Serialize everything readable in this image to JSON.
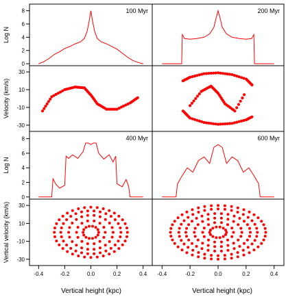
{
  "chart_data": {
    "type": "line",
    "layout": "4 rows x 2 columns, shared x axis",
    "x_label": "Vertical height (kpc)",
    "x_ticks": [
      "-0.4",
      "-0.2",
      "0.0",
      "0.2",
      "0.4"
    ],
    "xlim": [
      -0.47,
      0.47
    ],
    "series_color": "#ff0000",
    "row_labels": [
      "Log N",
      "Velocity (km/s)",
      "Log N",
      "Vertical velocity (km/s)"
    ],
    "logn_ticks": [
      "0",
      "2",
      "4",
      "6",
      "8"
    ],
    "logn_ylim": [
      -0.3,
      9.0
    ],
    "vel_ticks": [
      "-30",
      "-10",
      "10",
      "30"
    ],
    "vel_ylim": [
      -37,
      37
    ],
    "panels": [
      {
        "time_label": "100 Myr",
        "kind": "histogram",
        "x": [
          -0.4,
          -0.36,
          -0.32,
          -0.28,
          -0.24,
          -0.2,
          -0.16,
          -0.12,
          -0.08,
          -0.05,
          -0.03,
          -0.015,
          0.0,
          0.015,
          0.03,
          0.05,
          0.08,
          0.12,
          0.16,
          0.2,
          0.24,
          0.28,
          0.32,
          0.36,
          0.4
        ],
        "y": [
          0.0,
          0.3,
          0.8,
          1.4,
          1.8,
          2.3,
          2.6,
          3.0,
          3.3,
          3.8,
          4.8,
          6.2,
          8.0,
          6.2,
          4.8,
          3.8,
          3.3,
          3.0,
          2.6,
          2.2,
          1.6,
          1.0,
          0.5,
          0.2,
          0.0
        ]
      },
      {
        "time_label": "200 Myr",
        "kind": "histogram",
        "x": [
          -0.4,
          -0.26,
          -0.255,
          -0.24,
          -0.2,
          -0.15,
          -0.1,
          -0.06,
          -0.03,
          -0.015,
          0.0,
          0.015,
          0.03,
          0.06,
          0.1,
          0.15,
          0.2,
          0.24,
          0.255,
          0.26,
          0.4
        ],
        "y": [
          0.0,
          0.0,
          4.4,
          3.8,
          3.7,
          3.8,
          4.0,
          4.5,
          5.5,
          6.8,
          8.0,
          6.8,
          5.5,
          4.5,
          4.0,
          3.8,
          3.7,
          3.8,
          4.4,
          0.0,
          0.0
        ]
      },
      {
        "time_label": "",
        "kind": "phase",
        "groups": [
          {
            "x": [
              -0.37,
              -0.3,
              -0.2,
              -0.12,
              -0.05,
              0.0,
              0.05,
              0.12,
              0.2,
              0.3,
              0.37
            ],
            "y": [
              -14,
              2,
              10,
              13,
              12,
              4,
              -6,
              -12,
              -12,
              -5,
              2
            ]
          }
        ]
      },
      {
        "time_label": "",
        "kind": "phase",
        "groups": [
          {
            "x": [
              -0.25,
              -0.2,
              -0.1,
              0.0,
              0.1,
              0.2,
              0.25
            ],
            "y": [
              20,
              24,
              28,
              29,
              27,
              22,
              14
            ]
          },
          {
            "x": [
              -0.25,
              -0.2,
              -0.1,
              0.0,
              0.1,
              0.2,
              0.25
            ],
            "y": [
              -14,
              -22,
              -27,
              -29,
              -28,
              -24,
              -20
            ]
          },
          {
            "x": [
              -0.2,
              -0.12,
              -0.05,
              0.0,
              0.05,
              0.12,
              0.2
            ],
            "y": [
              -8,
              8,
              14,
              6,
              -6,
              -14,
              8
            ]
          }
        ]
      },
      {
        "time_label": "400 Myr",
        "kind": "histogram",
        "x": [
          -0.4,
          -0.3,
          -0.29,
          -0.27,
          -0.24,
          -0.2,
          -0.19,
          -0.17,
          -0.14,
          -0.1,
          -0.06,
          -0.04,
          -0.02,
          0.0,
          0.02,
          0.04,
          0.06,
          0.1,
          0.14,
          0.17,
          0.19,
          0.2,
          0.24,
          0.27,
          0.29,
          0.3,
          0.38,
          0.4
        ],
        "y": [
          0.0,
          0.0,
          2.5,
          1.8,
          1.2,
          1.6,
          5.6,
          5.3,
          5.8,
          5.3,
          6.2,
          7.4,
          7.4,
          7.2,
          7.4,
          7.4,
          6.0,
          5.2,
          5.8,
          4.8,
          5.6,
          1.8,
          1.4,
          2.4,
          1.4,
          0.0,
          0.0,
          0.0
        ]
      },
      {
        "time_label": "600 Myr",
        "kind": "histogram",
        "x": [
          -0.4,
          -0.3,
          -0.29,
          -0.26,
          -0.22,
          -0.18,
          -0.14,
          -0.1,
          -0.06,
          -0.03,
          0.0,
          0.03,
          0.06,
          0.1,
          0.14,
          0.18,
          0.22,
          0.26,
          0.29,
          0.3,
          0.4
        ],
        "y": [
          0.0,
          0.0,
          1.8,
          2.8,
          4.0,
          3.4,
          5.0,
          5.5,
          4.6,
          6.8,
          7.2,
          6.8,
          4.6,
          5.5,
          5.0,
          3.4,
          4.0,
          2.8,
          1.8,
          0.0,
          0.0
        ]
      },
      {
        "time_label": "",
        "kind": "phase",
        "groups": [
          {
            "cx": 0.0,
            "cy": 0,
            "rx": [
              0.06,
              0.11,
              0.17,
              0.23,
              0.28
            ],
            "ry": [
              7,
              13,
              19,
              24,
              28
            ]
          }
        ]
      },
      {
        "time_label": "",
        "kind": "phase",
        "groups": [
          {
            "cx": 0.0,
            "cy": 0,
            "rx": [
              0.06,
              0.11,
              0.17,
              0.23,
              0.28,
              0.34
            ],
            "ry": [
              6,
              11,
              16,
              21,
              26,
              30
            ]
          }
        ]
      }
    ]
  }
}
